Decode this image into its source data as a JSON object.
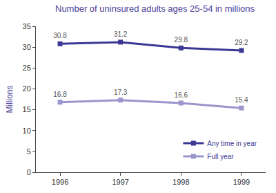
{
  "chart_data": {
    "type": "line",
    "title": "Number of uninsured adults ages 25-54 in millions",
    "y_label": "Millions",
    "categories": [
      "1996",
      "1997",
      "1998",
      "1999"
    ],
    "series": [
      {
        "name": "Any time in year",
        "color": "#3b3894",
        "values": [
          30.8,
          31.2,
          29.8,
          29.2
        ],
        "marker": "square"
      },
      {
        "name": "Full year",
        "color": "#9a96cc",
        "values": [
          16.8,
          17.3,
          16.6,
          15.4
        ],
        "marker": "square"
      }
    ],
    "ylim": [
      0,
      35
    ],
    "yticks": [
      0,
      5,
      10,
      15,
      20,
      25,
      30,
      35
    ],
    "grid": false,
    "legend": "bottom right",
    "data_labels": true
  }
}
